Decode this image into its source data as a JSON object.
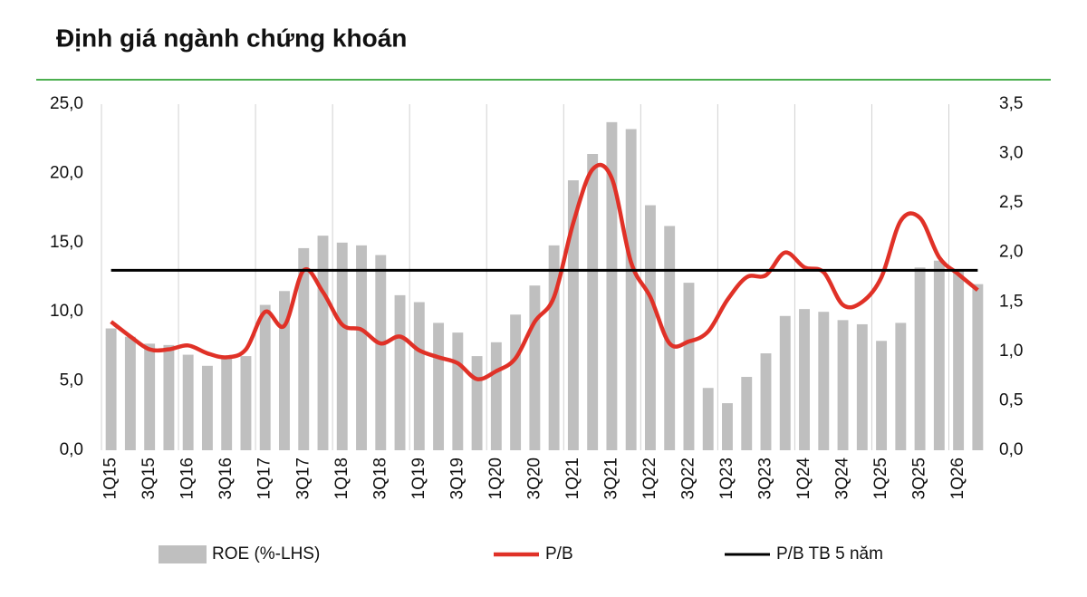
{
  "chart_data": {
    "type": "bar-line",
    "title": "Định giá ngành chứng khoán",
    "categories": [
      "1Q15",
      null,
      "3Q15",
      null,
      "1Q16",
      null,
      "3Q16",
      null,
      "1Q17",
      null,
      "3Q17",
      null,
      "1Q18",
      null,
      "3Q18",
      null,
      "1Q19",
      null,
      "3Q19",
      null,
      "1Q20",
      null,
      "3Q20",
      null,
      "1Q21",
      null,
      "3Q21",
      null,
      "1Q22",
      null,
      "3Q22",
      null,
      "1Q23",
      null,
      "3Q23",
      null,
      "1Q24",
      null,
      "3Q24",
      null,
      "1Q25",
      null,
      "3Q25",
      null,
      "1Q26",
      null
    ],
    "series": [
      {
        "name": "ROE (%-LHS)",
        "kind": "bar",
        "axis": "y",
        "color": "#bfbfbf",
        "values": [
          8.8,
          8.2,
          7.7,
          7.6,
          6.9,
          6.1,
          6.7,
          6.8,
          10.5,
          11.5,
          14.6,
          15.5,
          15.0,
          14.8,
          14.1,
          11.2,
          10.7,
          9.2,
          8.5,
          6.8,
          7.8,
          9.8,
          11.9,
          14.8,
          19.5,
          21.4,
          23.7,
          23.2,
          17.7,
          16.2,
          12.1,
          4.5,
          3.4,
          5.3,
          7.0,
          9.7,
          10.2,
          10.0,
          9.4,
          9.1,
          7.9,
          9.2,
          13.2,
          13.7,
          13.0,
          12.0
        ]
      },
      {
        "name": "P/B",
        "kind": "line",
        "axis": "y2",
        "color": "#e03127",
        "values": [
          1.3,
          1.15,
          1.02,
          1.02,
          1.06,
          0.98,
          0.94,
          1.02,
          1.4,
          1.26,
          1.82,
          1.6,
          1.27,
          1.22,
          1.08,
          1.15,
          1.01,
          0.94,
          0.88,
          0.72,
          0.8,
          0.93,
          1.3,
          1.55,
          2.3,
          2.84,
          2.75,
          1.9,
          1.55,
          1.08,
          1.1,
          1.2,
          1.52,
          1.75,
          1.77,
          2.0,
          1.85,
          1.8,
          1.47,
          1.5,
          1.75,
          2.32,
          2.35,
          1.95,
          1.78,
          1.62
        ]
      },
      {
        "name": "P/B TB 5 năm",
        "kind": "flat",
        "axis": "y2",
        "color": "#000000",
        "values": [
          1.82,
          1.82,
          1.82,
          1.82,
          1.82,
          1.82,
          1.82,
          1.82,
          1.82,
          1.82,
          1.82,
          1.82,
          1.82,
          1.82,
          1.82,
          1.82,
          1.82,
          1.82,
          1.82,
          1.82,
          1.82,
          1.82,
          1.82,
          1.82,
          1.82,
          1.82,
          1.82,
          1.82,
          1.82,
          1.82,
          1.82,
          1.82,
          1.82,
          1.82,
          1.82,
          1.82,
          1.82,
          1.82,
          1.82,
          1.82,
          1.82,
          1.82,
          1.82,
          1.82,
          1.82,
          1.82
        ]
      }
    ],
    "ylim": [
      0,
      25
    ],
    "yticks": [
      {
        "value": 0,
        "label": "0,0"
      },
      {
        "value": 5,
        "label": "5,0"
      },
      {
        "value": 10,
        "label": "10,0"
      },
      {
        "value": 15,
        "label": "15,0"
      },
      {
        "value": 20,
        "label": "20,0"
      },
      {
        "value": 25,
        "label": "25,0"
      }
    ],
    "y2lim": [
      0,
      3.5
    ],
    "y2ticks": [
      {
        "value": 0,
        "label": "0,0"
      },
      {
        "value": 0.5,
        "label": "0,5"
      },
      {
        "value": 1,
        "label": "1,0"
      },
      {
        "value": 1.5,
        "label": "1,5"
      },
      {
        "value": 2,
        "label": "2,0"
      },
      {
        "value": 2.5,
        "label": "2,5"
      },
      {
        "value": 3,
        "label": "3,0"
      },
      {
        "value": 3.5,
        "label": "3,5"
      }
    ],
    "grid": "x",
    "title_rule_color": "#4caf50"
  }
}
